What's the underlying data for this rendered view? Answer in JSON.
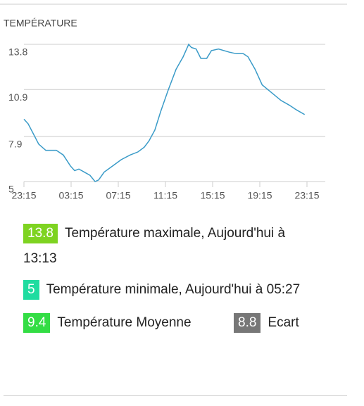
{
  "chart_data": {
    "type": "line",
    "title": "TEMPÉRATURE",
    "color": "#3a9bc8",
    "x": [
      0,
      0.36,
      0.84,
      1.25,
      1.85,
      2.75,
      3.34,
      3.94,
      4.3,
      4.66,
      5.13,
      5.6,
      6.03,
      6.33,
      6.8,
      7.52,
      8.24,
      9.0,
      9.67,
      10.2,
      10.6,
      11.1,
      11.6,
      12.2,
      12.9,
      13.5,
      13.97,
      14.2,
      14.6,
      15.0,
      15.5,
      15.9,
      16.5,
      17.4,
      18.0,
      18.6,
      19.0,
      19.6,
      20.2,
      21.0,
      21.8,
      22.5,
      23.1,
      23.8
    ],
    "values": [
      9.0,
      8.7,
      8.0,
      7.4,
      7.0,
      7.0,
      6.7,
      6.0,
      5.7,
      5.8,
      5.6,
      5.4,
      5.0,
      5.1,
      5.6,
      6.0,
      6.4,
      6.7,
      6.9,
      7.2,
      7.6,
      8.3,
      9.5,
      10.8,
      12.2,
      13.0,
      13.8,
      13.6,
      13.5,
      12.9,
      12.9,
      13.4,
      13.5,
      13.3,
      13.2,
      13.2,
      13.0,
      12.2,
      11.2,
      10.7,
      10.2,
      9.9,
      9.6,
      9.3
    ],
    "xlim": [
      0,
      24
    ],
    "xticks": [
      {
        "value": 0,
        "label": "23:15"
      },
      {
        "value": 4,
        "label": "03:15"
      },
      {
        "value": 8,
        "label": "07:15"
      },
      {
        "value": 12,
        "label": "11:15"
      },
      {
        "value": 16,
        "label": "15:15"
      },
      {
        "value": 20,
        "label": "19:15"
      },
      {
        "value": 24,
        "label": "23:15"
      }
    ],
    "ylim": [
      5,
      13.8
    ],
    "yticks": [
      5,
      7.9,
      10.9,
      13.8
    ],
    "grid": true
  },
  "stats": [
    {
      "value": 13.8,
      "label": "Température maximale, Aujourd'hui à 13:13",
      "color": "#7ed321"
    },
    {
      "value": 5,
      "label": "Température minimale, Aujourd'hui à 05:27",
      "color": "#1fdca0"
    },
    {
      "value": 9.4,
      "label": "Température Moyenne",
      "color": "#33dd44"
    },
    {
      "value": 8.8,
      "label": "Ecart",
      "color": "#777777"
    }
  ]
}
